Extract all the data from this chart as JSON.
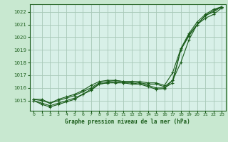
{
  "title": "Graphe pression niveau de la mer (hPa)",
  "background_color": "#c8e8d0",
  "plot_bg_color": "#d8f0e8",
  "grid_color": "#a8c8b8",
  "line_color": "#1a5c1a",
  "xlim": [
    -0.5,
    23.5
  ],
  "ylim": [
    1014.2,
    1022.6
  ],
  "yticks": [
    1015,
    1016,
    1017,
    1018,
    1019,
    1020,
    1021,
    1022
  ],
  "xticks": [
    0,
    1,
    2,
    3,
    4,
    5,
    6,
    7,
    8,
    9,
    10,
    11,
    12,
    13,
    14,
    15,
    16,
    17,
    18,
    19,
    20,
    21,
    22,
    23
  ],
  "series": [
    {
      "x": [
        0,
        1,
        2,
        3,
        4,
        5,
        6,
        7,
        8,
        9,
        10,
        11,
        12,
        13,
        14,
        15,
        16,
        17,
        18,
        19,
        20,
        21,
        22,
        23
      ],
      "y": [
        1015.1,
        1015.1,
        1014.8,
        1015.1,
        1015.3,
        1015.5,
        1015.8,
        1016.2,
        1016.5,
        1016.6,
        1016.6,
        1016.5,
        1016.5,
        1016.5,
        1016.4,
        1016.4,
        1016.2,
        1017.2,
        1019.1,
        1020.3,
        1021.2,
        1021.8,
        1022.2,
        1022.4
      ]
    },
    {
      "x": [
        0,
        1,
        2,
        3,
        4,
        5,
        6,
        7,
        8,
        9,
        10,
        11,
        12,
        13,
        14,
        15,
        16,
        17,
        18,
        19,
        20,
        21,
        22,
        23
      ],
      "y": [
        1015.1,
        1015.0,
        1014.8,
        1015.0,
        1015.2,
        1015.4,
        1015.7,
        1016.0,
        1016.4,
        1016.5,
        1016.6,
        1016.5,
        1016.5,
        1016.4,
        1016.3,
        1016.3,
        1016.1,
        1016.6,
        1018.0,
        1019.8,
        1021.0,
        1021.7,
        1022.1,
        1022.4
      ]
    },
    {
      "x": [
        0,
        1,
        2,
        3,
        4,
        5,
        6,
        7,
        8,
        9,
        10,
        11,
        12,
        13,
        14,
        15,
        16,
        17,
        18,
        19,
        20,
        21,
        22,
        23
      ],
      "y": [
        1015.0,
        1014.8,
        1014.6,
        1014.8,
        1015.0,
        1015.2,
        1015.5,
        1015.8,
        1016.3,
        1016.4,
        1016.5,
        1016.4,
        1016.4,
        1016.3,
        1016.2,
        1016.0,
        1016.0,
        1016.4,
        1019.0,
        1020.2,
        1021.0,
        1021.7,
        1022.0,
        1022.4
      ]
    },
    {
      "x": [
        0,
        1,
        2,
        3,
        4,
        5,
        6,
        7,
        8,
        9,
        10,
        11,
        12,
        13,
        14,
        15,
        16,
        17,
        18,
        19,
        20,
        21,
        22,
        23
      ],
      "y": [
        1015.0,
        1014.7,
        1014.5,
        1014.7,
        1014.9,
        1015.1,
        1015.5,
        1015.9,
        1016.3,
        1016.4,
        1016.4,
        1016.4,
        1016.3,
        1016.3,
        1016.1,
        1015.9,
        1015.95,
        1016.6,
        1019.0,
        1020.1,
        1021.0,
        1021.5,
        1021.8,
        1022.3
      ]
    }
  ]
}
